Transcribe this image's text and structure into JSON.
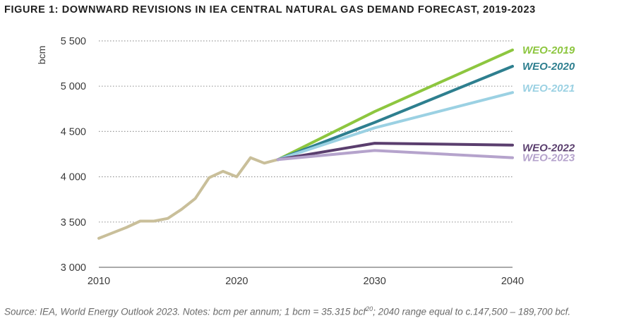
{
  "title": "FIGURE 1: DOWNWARD REVISIONS IN IEA CENTRAL NATURAL GAS DEMAND FORECAST, 2019-2023",
  "source": {
    "before_sup": "Source: IEA, World Energy Outlook 2023. Notes: bcm per annum; 1 bcm = 35.315 bcf",
    "sup": "20",
    "after_sup": "; 2040 range equal to c.147,500 – 189,700 bcf."
  },
  "chart_data": {
    "type": "line",
    "title": "FIGURE 1: DOWNWARD REVISIONS IN IEA CENTRAL NATURAL GAS DEMAND FORECAST, 2019-2023",
    "ylabel": "bcm",
    "xlabel": "",
    "xlim": [
      2010,
      2040
    ],
    "ylim": [
      3000,
      5500
    ],
    "x_ticks": [
      2010,
      2020,
      2030,
      2040
    ],
    "x_tick_labels": [
      "2010",
      "2020",
      "2030",
      "2040"
    ],
    "y_ticks": [
      3000,
      3500,
      4000,
      4500,
      5000,
      5500
    ],
    "y_tick_labels": [
      "3 000",
      "3 500",
      "4 000",
      "4 500",
      "5 000",
      "5 500"
    ],
    "grid": "horizontal dotted",
    "legend": "direct labels at line ends (right)",
    "series": [
      {
        "name": "",
        "color": "#c9bf9a",
        "x": [
          2010,
          2011,
          2012,
          2013,
          2014,
          2015,
          2016,
          2017,
          2018,
          2019,
          2020,
          2021,
          2022,
          2023
        ],
        "y": [
          3320,
          3380,
          3440,
          3510,
          3510,
          3540,
          3640,
          3760,
          3990,
          4060,
          4000,
          4210,
          4150,
          4190
        ]
      },
      {
        "name": "WEO-2019",
        "color": "#8dc63f",
        "x": [
          2023,
          2030,
          2040
        ],
        "y": [
          4190,
          4720,
          5400
        ]
      },
      {
        "name": "WEO-2020",
        "color": "#2e7f8f",
        "x": [
          2023,
          2030,
          2040
        ],
        "y": [
          4190,
          4600,
          5220
        ]
      },
      {
        "name": "WEO-2021",
        "color": "#9bd1e3",
        "x": [
          2023,
          2030,
          2040
        ],
        "y": [
          4190,
          4540,
          4930
        ]
      },
      {
        "name": "WEO-2022",
        "color": "#5a3e6e",
        "x": [
          2023,
          2030,
          2040
        ],
        "y": [
          4190,
          4370,
          4350
        ]
      },
      {
        "name": "WEO-2023",
        "color": "#b5a3cc",
        "x": [
          2023,
          2030,
          2040
        ],
        "y": [
          4190,
          4290,
          4210
        ]
      }
    ]
  }
}
